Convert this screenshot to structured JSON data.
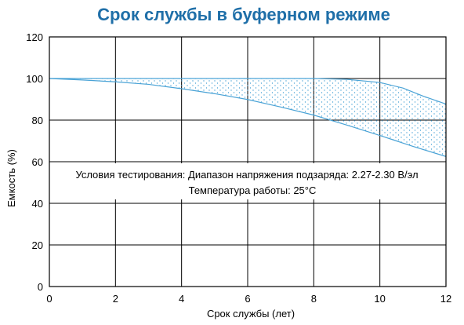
{
  "chart_data": {
    "type": "area",
    "title": "Срок службы в буферном режиме",
    "xlabel": "Срок службы (лет)",
    "ylabel": "Емкость (%)",
    "xlim": [
      0,
      12
    ],
    "ylim": [
      0,
      120
    ],
    "x_ticks": [
      0,
      2,
      4,
      6,
      8,
      10,
      12
    ],
    "y_ticks": [
      0,
      20,
      40,
      60,
      80,
      100,
      120
    ],
    "grid": true,
    "annotation": [
      "Условия тестирования: Диапазон напряжения подзаряда: 2.27-2.30 В/эл",
      "Температура работы: 25°C"
    ],
    "series": [
      {
        "x": [
          0,
          1,
          2,
          3,
          4,
          5,
          6,
          7,
          8,
          9,
          10,
          11,
          12
        ],
        "y": [
          100,
          99.3,
          98.4,
          97.2,
          95.1,
          92.7,
          89.9,
          86.3,
          82.4,
          77.6,
          72.6,
          67.4,
          62.5
        ]
      },
      {
        "x": [
          0,
          2,
          4,
          6,
          8,
          9,
          10,
          10.7,
          11.3,
          12
        ],
        "y": [
          100,
          100,
          100,
          100,
          100,
          99.6,
          98.1,
          95.4,
          91.6,
          87.7
        ]
      }
    ],
    "colors": {
      "title": "#1f6fa8",
      "curve": "#4aa3d6",
      "fill_dots": "#4aa3d6"
    }
  }
}
